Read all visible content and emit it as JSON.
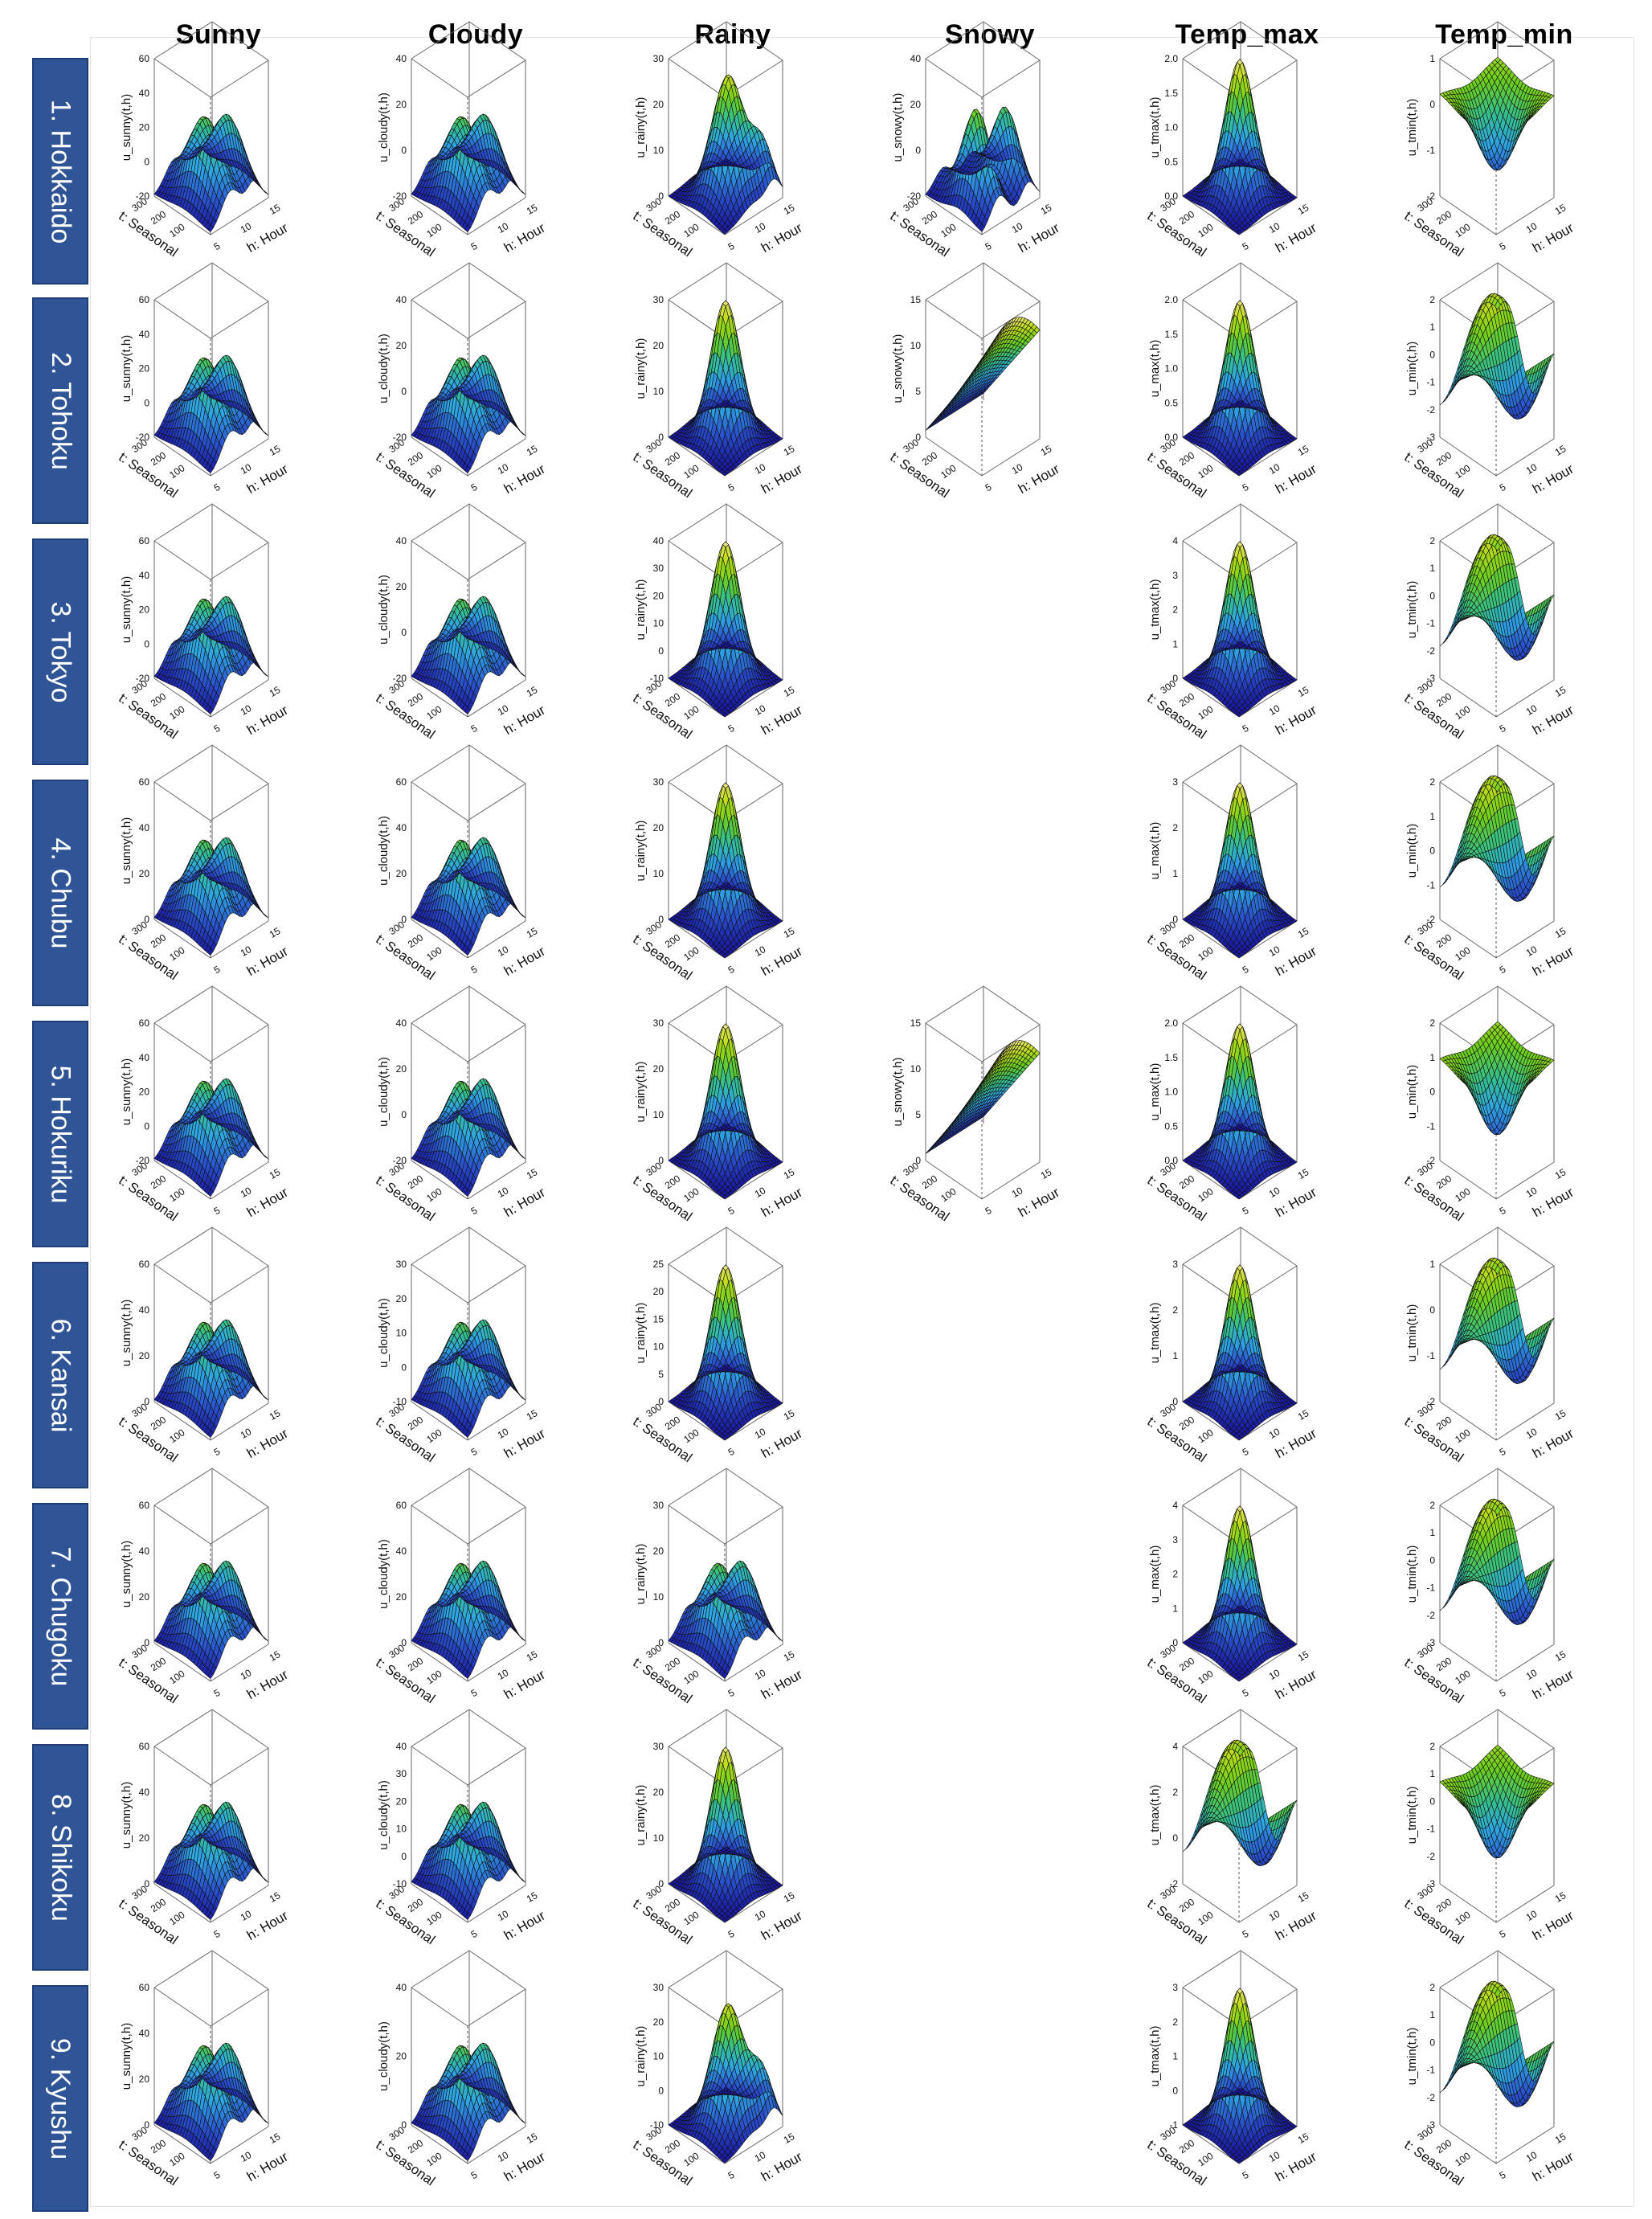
{
  "chart_data": {
    "type": "surface3d-grid",
    "columns": [
      "Sunny",
      "Cloudy",
      "Rainy",
      "Snowy",
      "Temp_max",
      "Temp_min"
    ],
    "rows": [
      "1. Hokkaido",
      "2. Tohoku",
      "3. Tokyo",
      "4. Chubu",
      "5. Hokuriku",
      "6. Kansai",
      "7. Chugoku",
      "8. Shikoku",
      "9. Kyushu"
    ],
    "x_axis": {
      "label": "t: Seasonal",
      "ticks": [
        "100",
        "200",
        "300"
      ]
    },
    "y_axis": {
      "label": "h: Hour",
      "ticks": [
        "5",
        "10",
        "15"
      ]
    },
    "colormap": [
      "#1a17a0",
      "#2a52cc",
      "#2fa6e3",
      "#36c08a",
      "#6ccf1e",
      "#c0dc1a",
      "#f0e88a"
    ],
    "panels": [
      {
        "row": 0,
        "col": 0,
        "zlabel": "u_sunny(t,h)",
        "zticks": [
          "60",
          "40",
          "20",
          "0",
          "-20"
        ],
        "shape": "twin"
      },
      {
        "row": 0,
        "col": 1,
        "zlabel": "u_cloudy(t,h)",
        "zticks": [
          "40",
          "20",
          "0",
          "-20"
        ],
        "shape": "twin"
      },
      {
        "row": 0,
        "col": 2,
        "zlabel": "u_rainy(t,h)",
        "zticks": [
          "30",
          "20",
          "10",
          "0"
        ],
        "shape": "twin-skew"
      },
      {
        "row": 0,
        "col": 3,
        "zlabel": "u_snowy(t,h)",
        "zticks": [
          "40",
          "20",
          "0",
          "-20"
        ],
        "shape": "twin-sharp"
      },
      {
        "row": 0,
        "col": 4,
        "zlabel": "u_tmax(t,h)",
        "zticks": [
          "2.0",
          "1.5",
          "1.0",
          "0.5",
          "0.0"
        ],
        "shape": "peak"
      },
      {
        "row": 0,
        "col": 5,
        "zlabel": "u_tmin(t,h)",
        "zticks": [
          "1",
          "0",
          "-1",
          "-2"
        ],
        "shape": "bowl"
      },
      {
        "row": 1,
        "col": 0,
        "zlabel": "u_sunny(t,h)",
        "zticks": [
          "60",
          "40",
          "20",
          "0",
          "-20"
        ],
        "shape": "twin"
      },
      {
        "row": 1,
        "col": 1,
        "zlabel": "u_cloudy(t,h)",
        "zticks": [
          "40",
          "20",
          "0",
          "-20"
        ],
        "shape": "twin"
      },
      {
        "row": 1,
        "col": 2,
        "zlabel": "u_rainy(t,h)",
        "zticks": [
          "30",
          "20",
          "10",
          "0"
        ],
        "shape": "peak"
      },
      {
        "row": 1,
        "col": 3,
        "zlabel": "u_snowy(t,h)",
        "zticks": [
          "15",
          "10",
          "5",
          "0"
        ],
        "shape": "ridge"
      },
      {
        "row": 1,
        "col": 4,
        "zlabel": "u_max(t,h)",
        "zticks": [
          "2.0",
          "1.5",
          "1.0",
          "0.5",
          "0.0"
        ],
        "shape": "peak"
      },
      {
        "row": 1,
        "col": 5,
        "zlabel": "u_min(t,h)",
        "zticks": [
          "2",
          "1",
          "0",
          "-1",
          "-2",
          "-3"
        ],
        "shape": "saddle"
      },
      {
        "row": 2,
        "col": 0,
        "zlabel": "u_sunny(t,h)",
        "zticks": [
          "60",
          "40",
          "20",
          "0",
          "-20"
        ],
        "shape": "twin"
      },
      {
        "row": 2,
        "col": 1,
        "zlabel": "u_cloudy(t,h)",
        "zticks": [
          "40",
          "20",
          "0",
          "-20"
        ],
        "shape": "twin"
      },
      {
        "row": 2,
        "col": 2,
        "zlabel": "u_rainy(t,h)",
        "zticks": [
          "40",
          "30",
          "20",
          "10",
          "0",
          "-10"
        ],
        "shape": "peak"
      },
      {
        "row": 2,
        "col": 4,
        "zlabel": "u_tmax(t,h)",
        "zticks": [
          "4",
          "3",
          "2",
          "1",
          "0"
        ],
        "shape": "peak"
      },
      {
        "row": 2,
        "col": 5,
        "zlabel": "u_tmin(t,h)",
        "zticks": [
          "2",
          "1",
          "0",
          "-1",
          "-2",
          "-3"
        ],
        "shape": "saddle"
      },
      {
        "row": 3,
        "col": 0,
        "zlabel": "u_sunny(t,h)",
        "zticks": [
          "60",
          "40",
          "20",
          "0"
        ],
        "shape": "twin"
      },
      {
        "row": 3,
        "col": 1,
        "zlabel": "u_cloudy(t,h)",
        "zticks": [
          "60",
          "40",
          "20",
          "0"
        ],
        "shape": "twin"
      },
      {
        "row": 3,
        "col": 2,
        "zlabel": "u_rainy(t,h)",
        "zticks": [
          "30",
          "20",
          "10",
          "0"
        ],
        "shape": "peak"
      },
      {
        "row": 3,
        "col": 4,
        "zlabel": "u_max(t,h)",
        "zticks": [
          "3",
          "2",
          "1",
          "0"
        ],
        "shape": "peak"
      },
      {
        "row": 3,
        "col": 5,
        "zlabel": "u_min(t,h)",
        "zticks": [
          "2",
          "1",
          "0",
          "-1",
          "-2"
        ],
        "shape": "saddle"
      },
      {
        "row": 4,
        "col": 0,
        "zlabel": "u_sunny(t,h)",
        "zticks": [
          "60",
          "40",
          "20",
          "0",
          "-20"
        ],
        "shape": "twin"
      },
      {
        "row": 4,
        "col": 1,
        "zlabel": "u_cloudy(t,h)",
        "zticks": [
          "40",
          "20",
          "0",
          "-20"
        ],
        "shape": "twin"
      },
      {
        "row": 4,
        "col": 2,
        "zlabel": "u_rainy(t,h)",
        "zticks": [
          "30",
          "20",
          "10",
          "0"
        ],
        "shape": "peak"
      },
      {
        "row": 4,
        "col": 3,
        "zlabel": "u_snowy(t,h)",
        "zticks": [
          "15",
          "10",
          "5",
          "0"
        ],
        "shape": "ridge"
      },
      {
        "row": 4,
        "col": 4,
        "zlabel": "u_max(t,h)",
        "zticks": [
          "2.0",
          "1.5",
          "1.0",
          "0.5",
          "0.0"
        ],
        "shape": "peak"
      },
      {
        "row": 4,
        "col": 5,
        "zlabel": "u_min(t,h)",
        "zticks": [
          "2",
          "1",
          "0",
          "-1",
          "-2"
        ],
        "shape": "bowl"
      },
      {
        "row": 5,
        "col": 0,
        "zlabel": "u_sunny(t,h)",
        "zticks": [
          "60",
          "40",
          "20",
          "0"
        ],
        "shape": "twin"
      },
      {
        "row": 5,
        "col": 1,
        "zlabel": "u_cloudy(t,h)",
        "zticks": [
          "30",
          "20",
          "10",
          "0",
          "-10"
        ],
        "shape": "twin"
      },
      {
        "row": 5,
        "col": 2,
        "zlabel": "u_rainy(t,h)",
        "zticks": [
          "25",
          "20",
          "15",
          "10",
          "5",
          "0"
        ],
        "shape": "peak"
      },
      {
        "row": 5,
        "col": 4,
        "zlabel": "u_tmax(t,h)",
        "zticks": [
          "3",
          "2",
          "1",
          "0"
        ],
        "shape": "peak"
      },
      {
        "row": 5,
        "col": 5,
        "zlabel": "u_tmin(t,h)",
        "zticks": [
          "1",
          "0",
          "-1",
          "-2"
        ],
        "shape": "saddle"
      },
      {
        "row": 6,
        "col": 0,
        "zlabel": "u_sunny(t,h)",
        "zticks": [
          "60",
          "40",
          "20",
          "0"
        ],
        "shape": "twin"
      },
      {
        "row": 6,
        "col": 1,
        "zlabel": "u_cloudy(t,h)",
        "zticks": [
          "60",
          "40",
          "20",
          "0"
        ],
        "shape": "twin"
      },
      {
        "row": 6,
        "col": 2,
        "zlabel": "u_rainy(t,h)",
        "zticks": [
          "30",
          "20",
          "10",
          "0"
        ],
        "shape": "twin"
      },
      {
        "row": 6,
        "col": 4,
        "zlabel": "u_max(t,h)",
        "zticks": [
          "4",
          "3",
          "2",
          "1",
          "0"
        ],
        "shape": "peak"
      },
      {
        "row": 6,
        "col": 5,
        "zlabel": "u_tmin(t,h)",
        "zticks": [
          "2",
          "1",
          "0",
          "-1",
          "-2",
          "-3"
        ],
        "shape": "saddle"
      },
      {
        "row": 7,
        "col": 0,
        "zlabel": "u_sunny(t,h)",
        "zticks": [
          "60",
          "40",
          "20",
          "0"
        ],
        "shape": "twin"
      },
      {
        "row": 7,
        "col": 1,
        "zlabel": "u_cloudy(t,h)",
        "zticks": [
          "40",
          "30",
          "20",
          "10",
          "0",
          "-10"
        ],
        "shape": "twin"
      },
      {
        "row": 7,
        "col": 2,
        "zlabel": "u_rainy(t,h)",
        "zticks": [
          "30",
          "20",
          "10",
          "0"
        ],
        "shape": "peak"
      },
      {
        "row": 7,
        "col": 4,
        "zlabel": "u_tmax(t,h)",
        "zticks": [
          "4",
          "2",
          "0",
          "-2"
        ],
        "shape": "saddle"
      },
      {
        "row": 7,
        "col": 5,
        "zlabel": "u_tmin(t,h)",
        "zticks": [
          "2",
          "1",
          "0",
          "-1",
          "-2",
          "-3"
        ],
        "shape": "bowl"
      },
      {
        "row": 8,
        "col": 0,
        "zlabel": "u_sunny(t,h)",
        "zticks": [
          "60",
          "40",
          "20",
          "0"
        ],
        "shape": "twin"
      },
      {
        "row": 8,
        "col": 1,
        "zlabel": "u_cloudy(t,h)",
        "zticks": [
          "40",
          "20",
          "0"
        ],
        "shape": "twin"
      },
      {
        "row": 8,
        "col": 2,
        "zlabel": "u_rainy(t,h)",
        "zticks": [
          "30",
          "20",
          "10",
          "0",
          "-10"
        ],
        "shape": "twin-skew"
      },
      {
        "row": 8,
        "col": 4,
        "zlabel": "u_tmax(t,h)",
        "zticks": [
          "3",
          "2",
          "1",
          "0",
          "-1"
        ],
        "shape": "peak"
      },
      {
        "row": 8,
        "col": 5,
        "zlabel": "u_tmin(t,h)",
        "zticks": [
          "2",
          "1",
          "0",
          "-1",
          "-2",
          "-3"
        ],
        "shape": "saddle"
      }
    ]
  }
}
